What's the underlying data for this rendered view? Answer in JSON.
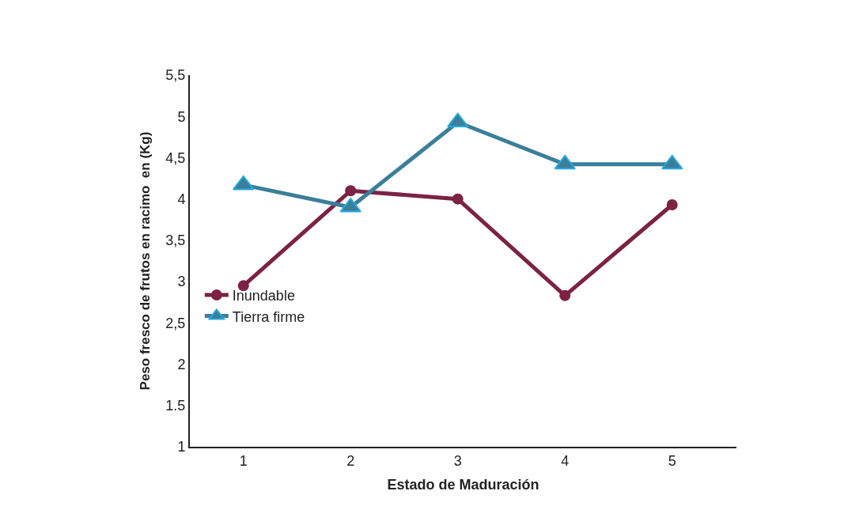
{
  "chart_data": {
    "type": "line",
    "xlabel": "Estado de Maduración",
    "ylabel": "Peso fresco de frutos en racimo  en (Kg)",
    "categories": [
      "1",
      "2",
      "3",
      "4",
      "5"
    ],
    "series": [
      {
        "name": "Inundable",
        "color": "#7b2245",
        "marker": "circle",
        "values": [
          2.95,
          4.1,
          4.0,
          2.83,
          3.93
        ]
      },
      {
        "name": "Tierra firme",
        "color": "#3a7f9a",
        "marker": "triangle",
        "values": [
          4.17,
          3.9,
          4.93,
          4.42,
          4.42
        ]
      }
    ],
    "ylim": [
      1,
      5.5
    ],
    "yticks": [
      {
        "value": 1,
        "label": "1"
      },
      {
        "value": 1.5,
        "label": "1.5"
      },
      {
        "value": 2,
        "label": "2"
      },
      {
        "value": 2.5,
        "label": "2,5"
      },
      {
        "value": 3,
        "label": "3"
      },
      {
        "value": 3.5,
        "label": "3,5"
      },
      {
        "value": 4,
        "label": "4"
      },
      {
        "value": 4.5,
        "label": "4,5"
      },
      {
        "value": 5,
        "label": "5"
      },
      {
        "value": 5.5,
        "label": "5,5"
      }
    ],
    "legend": "left",
    "line_style": "solid"
  }
}
